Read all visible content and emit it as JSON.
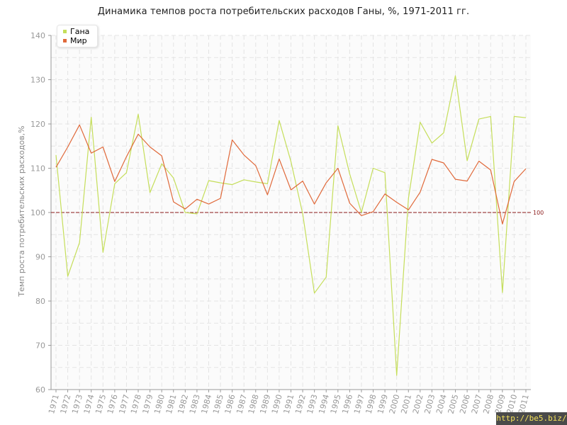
{
  "chart_data": {
    "type": "line",
    "title": "Динамика темпов роста потребительских расходов Ганы, %, 1971-2011 гг.",
    "xlabel": "",
    "ylabel": "Темп роста потребительских расходов,%",
    "ylim": [
      60,
      140
    ],
    "yticks": [
      "60",
      "70",
      "80",
      "90",
      "100",
      "110",
      "120",
      "130",
      "140"
    ],
    "grid": true,
    "legend_position": "top-left",
    "categories": [
      "1971",
      "1972",
      "1973",
      "1974",
      "1975",
      "1976",
      "1977",
      "1978",
      "1979",
      "1980",
      "1981",
      "1982",
      "1983",
      "1984",
      "1985",
      "1986",
      "1987",
      "1988",
      "1989",
      "1990",
      "1991",
      "1992",
      "1993",
      "1994",
      "1995",
      "1996",
      "1997",
      "1998",
      "1999",
      "2000",
      "2001",
      "2002",
      "2003",
      "2004",
      "2005",
      "2006",
      "2007",
      "2008",
      "2009",
      "2010",
      "2011"
    ],
    "series": [
      {
        "name": "Гана",
        "color": "#c5de5a",
        "values": [
          113.0,
          85.6,
          93.2,
          121.5,
          91.0,
          106.5,
          109.0,
          122.2,
          104.5,
          111.0,
          107.8,
          100.0,
          99.7,
          107.2,
          106.7,
          106.3,
          107.4,
          106.9,
          106.5,
          120.8,
          111.5,
          99.7,
          81.8,
          85.4,
          119.6,
          108.7,
          100.0,
          110.0,
          109.0,
          63.2,
          103.2,
          120.4,
          115.7,
          118.0,
          130.9,
          111.7,
          121.1,
          121.7,
          81.9,
          121.7,
          121.4
        ]
      },
      {
        "name": "Мир",
        "color": "#e0693a",
        "values": [
          110.2,
          114.8,
          119.8,
          113.4,
          114.8,
          107.0,
          112.6,
          117.7,
          114.8,
          112.8,
          102.4,
          100.8,
          103.0,
          101.9,
          103.2,
          116.4,
          113.0,
          110.6,
          104.0,
          112.1,
          105.1,
          107.1,
          101.9,
          106.7,
          110.0,
          102.1,
          99.3,
          100.2,
          104.2,
          102.3,
          100.6,
          104.6,
          112.0,
          111.2,
          107.5,
          107.1,
          111.6,
          109.6,
          97.4,
          107.0,
          109.9
        ]
      }
    ],
    "reference_line": {
      "value": 100,
      "label": "100",
      "color": "#8b1a1a"
    }
  },
  "watermark": "http://be5.biz/"
}
